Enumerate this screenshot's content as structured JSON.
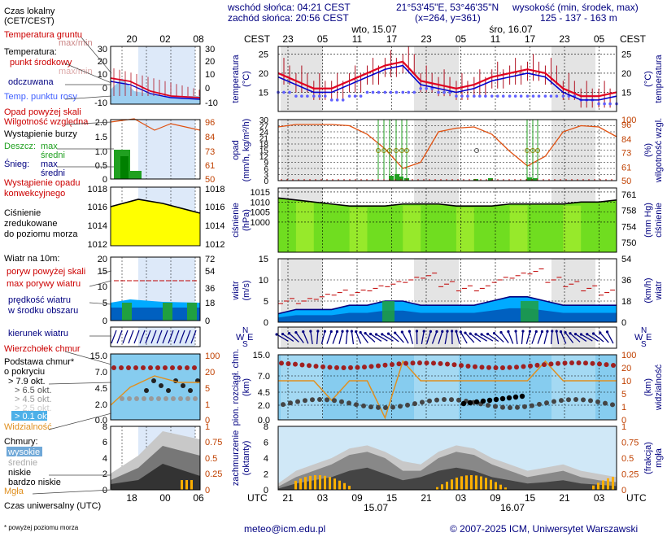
{
  "header": {
    "sunrise": "wschód słońca: 04:21 CEST",
    "sunset": "zachód słońca: 20:56 CEST",
    "coords": "21°53'45\"E, 53°46'35\"N",
    "grid": "(x=264, y=361)",
    "height_title": "wysokość (min, środek, max)",
    "heights": "125 - 137 - 163 m"
  },
  "legend": {
    "time_local": "Czas lokalny",
    "time_local_sub": "(CET/CEST)",
    "ground_temp": "Temperatura gruntu",
    "ground_temp_sub": "max/min",
    "temperature": "Temperatura:",
    "mid_point": "punkt środkowy",
    "max_min": "max/min",
    "perceived": "odczuwana",
    "dew_point": "Temp. punktu rosy",
    "precip_above": "Opad powyżej skali",
    "humidity": "Wilgotność względna",
    "storm": "Wystąpienie burzy",
    "rain": "Deszcz:",
    "rain_max": "max",
    "rain_mean": "średni",
    "snow": "Śnieg:",
    "snow_max": "max",
    "snow_mean": "średni",
    "convective": "Wystąpienie opadu",
    "convective2": "konwekcyjnego",
    "pressure1": "Ciśnienie",
    "pressure2": "zredukowane",
    "pressure3": "do poziomu morza",
    "wind_at": "Wiatr na 10m:",
    "gust_above": "poryw powyżej skali",
    "gust_max": "max porywy wiatru",
    "wind_speed1": "prędkość wiatru",
    "wind_speed2": "w środku obszaru",
    "wind_dir": "kierunek wiatru",
    "cloud_top": "Wierzchołek chmur",
    "cloud_base": "Podstawa chmur*",
    "cloud_cover": "o pokryciu",
    "okt79": "> 7.9 okt.",
    "okt65": "> 6.5 okt.",
    "okt45": "> 4.5 okt.",
    "okt25": "> 2.5 okt.",
    "okt01": "> 0.1 okt.",
    "visibility": "Widzialność",
    "clouds": "Chmury:",
    "high": "wysokie",
    "mid": "średnie",
    "low": "niskie",
    "very_low": "bardzo niskie",
    "fog": "Mgła",
    "utc": "Czas uniwersalny (UTC)",
    "footnote": "* powyżej poziomu morza"
  },
  "axis_titles": {
    "temp_left": "temperatura",
    "temp_left_unit": "(°C)",
    "temp_right": "temperatura",
    "temp_right_unit": "(°C)",
    "precip_left": "opad",
    "precip_left_unit": "(mm/h, kg/m²/h)",
    "precip_right": "wilgotność wzgl.",
    "precip_right_unit": "(%)",
    "press_left": "ciśnienie",
    "press_left_unit": "(hPa)",
    "press_right": "ciśnienie",
    "press_right_unit": "(mm Hg)",
    "wind_left": "wiatr",
    "wind_left_unit": "(m/s)",
    "wind_right": "wiatr",
    "wind_right_unit": "(km/h)",
    "cloud_left": "pion. rozciągł. chm.",
    "cloud_left_unit": "(km)",
    "cloud_right": "widzialność",
    "cloud_right_unit": "(km)",
    "cover_left": "zachmurzenie",
    "cover_left_unit": "(oktanty)",
    "cover_right": "mgła",
    "cover_right_unit": "(frakcja)"
  },
  "time_axis": {
    "cest_label": "CEST",
    "utc_label": "UTC",
    "local_ticks": [
      "23",
      "05",
      "11",
      "17",
      "23",
      "05",
      "11",
      "17",
      "23",
      "05"
    ],
    "utc_ticks": [
      "21",
      "03",
      "09",
      "15",
      "21",
      "03",
      "09",
      "15",
      "21",
      "03"
    ],
    "day1": "wto, 15.07",
    "day2": "śro, 16.07",
    "day1_bottom": "15.07",
    "day2_bottom": "16.07",
    "legend_local_ticks": [
      "20",
      "02",
      "08"
    ],
    "legend_utc_ticks": [
      "18",
      "00",
      "06"
    ]
  },
  "compass": {
    "n": "N",
    "w": "W",
    "s": "S",
    "e": "E"
  },
  "footer": {
    "email": "meteo@icm.edu.pl",
    "copyright": "© 2007-2025 ICM, Uniwersytet Warszawski"
  },
  "colors": {
    "temp_line": "#e00020",
    "perceived_line": "#0000cc",
    "dew": "#6060ff",
    "humidity": "#e05010",
    "pressure_fill": "#ffff00",
    "wind_fill": "#00aaff",
    "label_blue": "#000080",
    "label_red": "#cc0000",
    "night_band": "#e4e4e4",
    "legend_night": "#dde9f9"
  },
  "chart_data": [
    {
      "type": "line",
      "name_key": "temperature",
      "x": [
        "23",
        "02",
        "05",
        "08",
        "11",
        "14",
        "17",
        "20",
        "23",
        "02",
        "05",
        "08",
        "11",
        "14",
        "17",
        "20",
        "23",
        "02",
        "05",
        "08"
      ],
      "series": [
        {
          "values": [
            20,
            18,
            16,
            16,
            18,
            20,
            22,
            23,
            18,
            17,
            16,
            17,
            19,
            20,
            21,
            20,
            16,
            14,
            14,
            15
          ]
        },
        {
          "values": [
            19,
            17,
            15,
            15,
            17,
            19,
            21,
            22,
            17,
            16,
            15,
            16,
            18,
            19,
            20,
            19,
            15,
            13,
            13,
            14
          ]
        },
        {
          "values": [
            16,
            15,
            15,
            14,
            15,
            16,
            16,
            16,
            17,
            16,
            15,
            15,
            15,
            15,
            15,
            15,
            15,
            14,
            13,
            13
          ]
        }
      ],
      "ylim": [
        10,
        27
      ],
      "ticks": [
        15,
        20,
        25
      ]
    },
    {
      "type": "line",
      "name_key": "precipitation",
      "series": [
        {
          "values": [
            94,
            96,
            96,
            96,
            95,
            88,
            76,
            60,
            65,
            90,
            93,
            94,
            88,
            74,
            62,
            70,
            90,
            95,
            94,
            86
          ]
        }
      ],
      "left_ticks": [
        0,
        3,
        6,
        9,
        12,
        15,
        18,
        21,
        24,
        27,
        30
      ],
      "right_ticks": [
        50,
        61,
        73,
        84,
        96,
        100
      ],
      "ylim": [
        0,
        30
      ]
    },
    {
      "type": "area",
      "name_key": "pressure",
      "values": [
        1012,
        1011,
        1010,
        1009,
        1008,
        1008,
        1008,
        1009,
        1009,
        1009,
        1008,
        1008,
        1008,
        1009,
        1009,
        1009,
        1009,
        1010,
        1010,
        1011
      ],
      "ylim": [
        985,
        1017
      ],
      "left_ticks": [
        1000,
        1005,
        1010,
        1015
      ],
      "right_ticks": [
        750,
        754,
        758,
        761
      ]
    },
    {
      "type": "area",
      "name_key": "wind",
      "values": [
        2,
        3,
        3,
        3,
        4,
        4,
        5,
        5,
        4,
        4,
        4,
        4,
        5,
        6,
        6,
        5,
        4,
        4,
        4,
        4
      ],
      "gusts": [
        5,
        5,
        6,
        7,
        7,
        8,
        9,
        10,
        11,
        9,
        8,
        8,
        10,
        11,
        12,
        10,
        9,
        8,
        7,
        7
      ],
      "ylim": [
        0,
        15
      ],
      "left_ticks": [
        0,
        5,
        10,
        15
      ],
      "right_ticks": [
        0,
        18,
        36,
        54
      ]
    },
    {
      "type": "scatter",
      "name_key": "cloud_height",
      "left_ticks": [
        0.0,
        2.0,
        4.5,
        7.0,
        15.0
      ],
      "right_ticks": [
        0,
        1,
        5,
        10,
        20,
        100
      ],
      "visibility": [
        20,
        20,
        20,
        10,
        20,
        20,
        1,
        30,
        20,
        20,
        20,
        20,
        20,
        20,
        20,
        30,
        20,
        20,
        20,
        20
      ]
    },
    {
      "type": "area",
      "name_key": "cloud_cover",
      "left_ticks": [
        0,
        2,
        4,
        6,
        8
      ],
      "right_ticks": [
        0,
        0.25,
        0.5,
        0.75,
        1
      ]
    }
  ]
}
